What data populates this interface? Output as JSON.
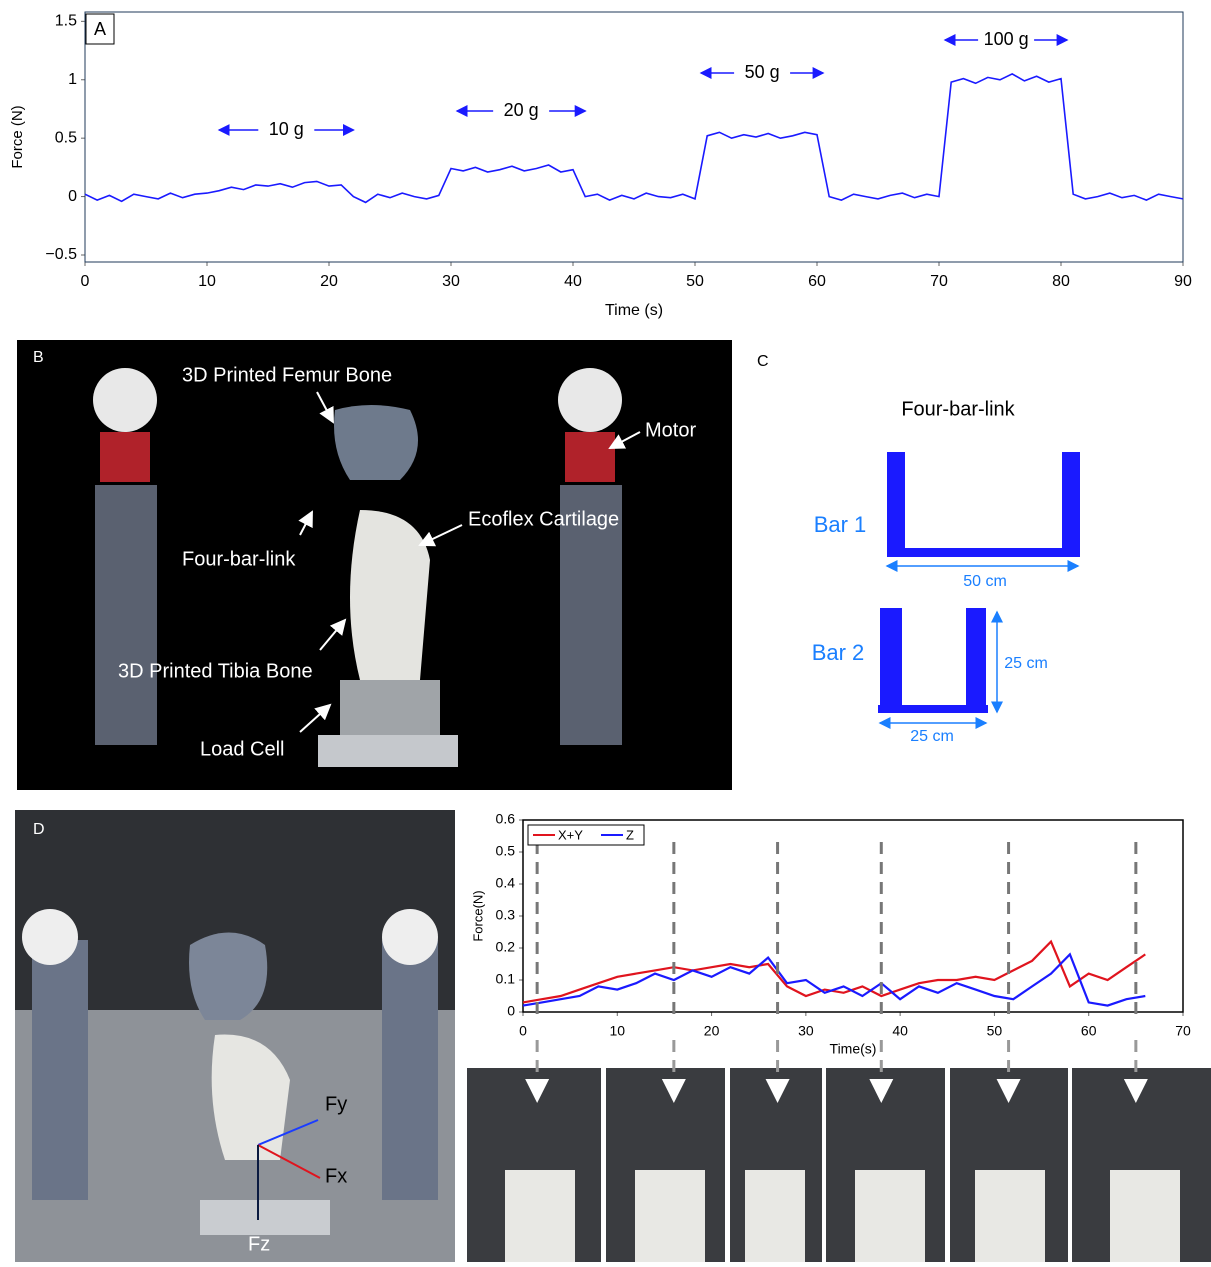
{
  "chart_data": [
    {
      "type": "line",
      "panel": "A",
      "x_label": "Time (s)",
      "y_label": "Force (N)",
      "annotations": [
        "10 g",
        "20 g",
        "50 g",
        "100 g"
      ],
      "x": [
        0,
        1,
        2,
        3,
        4,
        5,
        6,
        7,
        8,
        9,
        10,
        11,
        12,
        13,
        14,
        15,
        16,
        17,
        18,
        19,
        20,
        21,
        22,
        23,
        24,
        25,
        26,
        27,
        28,
        29,
        30,
        31,
        32,
        33,
        34,
        35,
        36,
        37,
        38,
        39,
        40,
        41,
        42,
        43,
        44,
        45,
        46,
        47,
        48,
        49,
        50,
        51,
        52,
        53,
        54,
        55,
        56,
        57,
        58,
        59,
        60,
        61,
        62,
        63,
        64,
        65,
        66,
        67,
        68,
        69,
        70,
        71,
        72,
        73,
        74,
        75,
        76,
        77,
        78,
        79,
        80,
        81,
        82,
        83,
        84,
        85,
        86,
        87,
        88,
        89,
        90
      ],
      "series": [
        {
          "color": "#1a1aff",
          "values": [
            0.02,
            -0.03,
            0.01,
            -0.04,
            0.02,
            0.0,
            -0.02,
            0.03,
            -0.01,
            0.02,
            0.03,
            0.05,
            0.08,
            0.06,
            0.1,
            0.09,
            0.11,
            0.08,
            0.12,
            0.13,
            0.09,
            0.1,
            0.0,
            -0.05,
            0.02,
            -0.01,
            0.03,
            0.0,
            -0.02,
            0.01,
            0.24,
            0.22,
            0.25,
            0.21,
            0.23,
            0.26,
            0.22,
            0.24,
            0.27,
            0.21,
            0.23,
            0.0,
            0.02,
            -0.03,
            0.01,
            -0.02,
            0.03,
            0.0,
            -0.01,
            0.02,
            -0.02,
            0.52,
            0.55,
            0.5,
            0.53,
            0.51,
            0.54,
            0.5,
            0.52,
            0.55,
            0.53,
            0.0,
            -0.03,
            0.02,
            0.0,
            -0.02,
            0.01,
            0.03,
            -0.01,
            0.02,
            0.0,
            0.98,
            1.01,
            0.97,
            1.02,
            1.0,
            1.05,
            0.99,
            1.03,
            0.98,
            1.01,
            0.02,
            -0.02,
            0.0,
            0.03,
            -0.01,
            0.01,
            -0.03,
            0.02,
            0.0,
            -0.02
          ]
        }
      ],
      "xlim": [
        0,
        90
      ],
      "xticks": [
        0,
        10,
        20,
        30,
        40,
        50,
        60,
        70,
        80,
        90
      ],
      "ylim": [
        -0.56,
        1.58
      ],
      "yticks": [
        {
          "value": -0.5,
          "label": "−0.5"
        },
        0,
        0.5,
        1,
        1.5
      ]
    },
    {
      "type": "line",
      "x_label": "Time(s)",
      "y_label": "Force(N)",
      "x": [
        0,
        2,
        4,
        6,
        8,
        10,
        12,
        14,
        16,
        18,
        20,
        22,
        24,
        26,
        28,
        30,
        32,
        34,
        36,
        38,
        40,
        42,
        44,
        46,
        48,
        50,
        52,
        54,
        56,
        58,
        60,
        62,
        64,
        66
      ],
      "series": [
        {
          "name": "X+Y",
          "color": "#e0141e",
          "values": [
            0.03,
            0.04,
            0.05,
            0.07,
            0.09,
            0.11,
            0.12,
            0.13,
            0.14,
            0.13,
            0.14,
            0.15,
            0.14,
            0.15,
            0.08,
            0.05,
            0.07,
            0.06,
            0.08,
            0.05,
            0.07,
            0.09,
            0.1,
            0.1,
            0.11,
            0.1,
            0.13,
            0.16,
            0.22,
            0.08,
            0.12,
            0.1,
            0.14,
            0.18
          ]
        },
        {
          "name": "Z",
          "color": "#1a1aff",
          "values": [
            0.02,
            0.03,
            0.04,
            0.05,
            0.08,
            0.07,
            0.09,
            0.12,
            0.1,
            0.13,
            0.11,
            0.14,
            0.12,
            0.17,
            0.09,
            0.1,
            0.06,
            0.08,
            0.05,
            0.09,
            0.04,
            0.08,
            0.06,
            0.09,
            0.07,
            0.05,
            0.04,
            0.08,
            0.12,
            0.18,
            0.03,
            0.02,
            0.04,
            0.05
          ]
        }
      ],
      "xlim": [
        0,
        70
      ],
      "xticks": [
        0,
        10,
        20,
        30,
        40,
        50,
        60,
        70
      ],
      "ylim": [
        0,
        0.6
      ],
      "yticks": [
        0,
        0.1,
        0.2,
        0.3,
        0.4,
        0.5,
        0.6
      ]
    }
  ],
  "photo_b": {
    "panel": "B",
    "labels": [
      "3D Printed Femur Bone",
      "Motor",
      "Four-bar-link",
      "Ecoflex Cartilage",
      "3D Printed Tibia Bone",
      "Load Cell"
    ]
  },
  "diagram_c": {
    "panel": "C",
    "title": "Four-bar-link",
    "bar1": {
      "label": "Bar 1",
      "width": "50 cm"
    },
    "bar2": {
      "label": "Bar 2",
      "width": "25 cm",
      "height": "25 cm"
    }
  },
  "photo_d": {
    "panel": "D",
    "labels": [
      "Fy",
      "Fx",
      "Fz"
    ]
  }
}
